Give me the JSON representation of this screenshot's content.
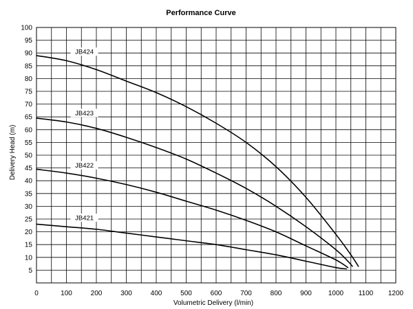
{
  "chart_data": {
    "type": "line",
    "title": "Performance Curve",
    "xlabel": "Volumetric Delivery (l/min)",
    "ylabel": "Delivery Head (m)",
    "xlim": [
      0,
      1200
    ],
    "ylim": [
      0,
      100
    ],
    "x_ticks": [
      0,
      100,
      200,
      300,
      400,
      500,
      600,
      700,
      800,
      900,
      1000,
      1100,
      1200
    ],
    "y_ticks": [
      5,
      10,
      15,
      20,
      25,
      30,
      35,
      40,
      45,
      50,
      55,
      60,
      65,
      70,
      75,
      80,
      85,
      90,
      95,
      100
    ],
    "grid": true,
    "series": [
      {
        "name": "JB424",
        "points": [
          [
            0,
            89
          ],
          [
            100,
            87
          ],
          [
            200,
            83.5
          ],
          [
            300,
            79
          ],
          [
            400,
            74.5
          ],
          [
            500,
            69
          ],
          [
            600,
            62.5
          ],
          [
            700,
            55
          ],
          [
            800,
            45.5
          ],
          [
            900,
            33.5
          ],
          [
            1000,
            19
          ],
          [
            1050,
            11
          ],
          [
            1075,
            6.5
          ]
        ]
      },
      {
        "name": "JB423",
        "points": [
          [
            0,
            64.5
          ],
          [
            100,
            63
          ],
          [
            200,
            60.5
          ],
          [
            300,
            57
          ],
          [
            400,
            53
          ],
          [
            500,
            48.5
          ],
          [
            600,
            43
          ],
          [
            700,
            37
          ],
          [
            800,
            30
          ],
          [
            900,
            22
          ],
          [
            1000,
            13
          ],
          [
            1040,
            8.5
          ],
          [
            1055,
            6.5
          ]
        ]
      },
      {
        "name": "JB422",
        "points": [
          [
            0,
            44.5
          ],
          [
            100,
            43
          ],
          [
            200,
            41
          ],
          [
            300,
            38.5
          ],
          [
            400,
            35.5
          ],
          [
            500,
            32
          ],
          [
            600,
            28.5
          ],
          [
            700,
            24.5
          ],
          [
            800,
            20
          ],
          [
            900,
            14.5
          ],
          [
            1000,
            9
          ],
          [
            1040,
            6
          ]
        ]
      },
      {
        "name": "JB421",
        "points": [
          [
            0,
            23
          ],
          [
            100,
            22
          ],
          [
            200,
            21
          ],
          [
            300,
            19.5
          ],
          [
            400,
            18
          ],
          [
            500,
            16.5
          ],
          [
            600,
            15
          ],
          [
            700,
            13
          ],
          [
            800,
            11
          ],
          [
            900,
            8.5
          ],
          [
            1000,
            6
          ],
          [
            1035,
            5.5
          ]
        ]
      }
    ],
    "annotations": [
      {
        "text": "JB424",
        "x": 160,
        "y": 90
      },
      {
        "text": "JB423",
        "x": 160,
        "y": 66
      },
      {
        "text": "JB422",
        "x": 160,
        "y": 45.5
      },
      {
        "text": "JB421",
        "x": 160,
        "y": 25
      }
    ]
  }
}
